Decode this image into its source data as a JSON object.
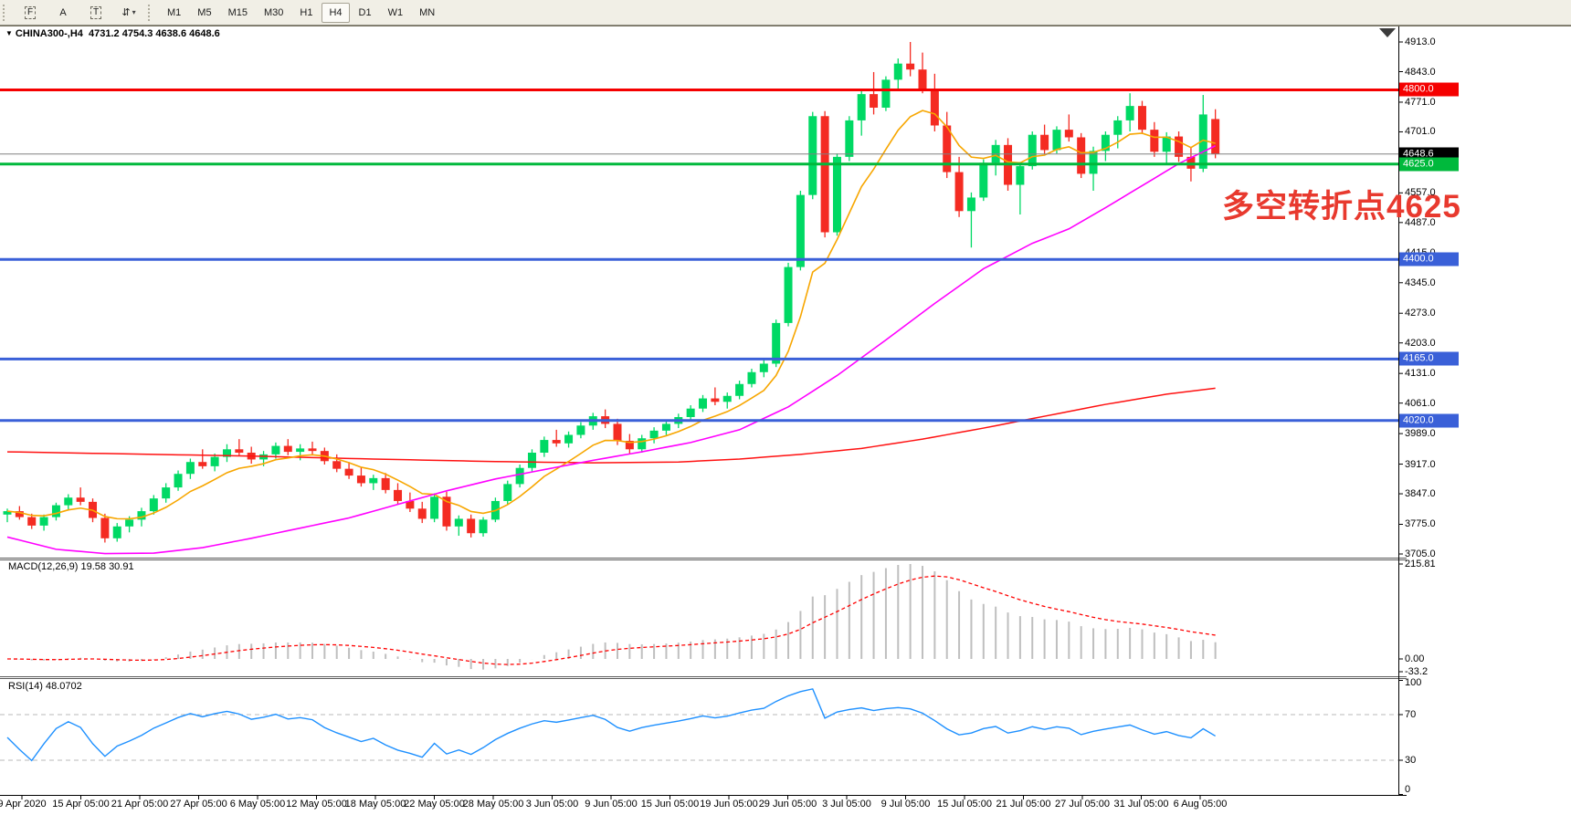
{
  "toolbar": {
    "icons": [
      {
        "name": "dotted-frame-f-icon",
        "glyph": "F",
        "boxed": true,
        "caret": false
      },
      {
        "name": "label-a-icon",
        "glyph": "A",
        "boxed": false,
        "caret": false
      },
      {
        "name": "text-tool-icon",
        "glyph": "T",
        "boxed": true,
        "caret": false
      },
      {
        "name": "arrows-dropdown-icon",
        "glyph": "⇵",
        "boxed": false,
        "caret": true
      }
    ],
    "timeframes": [
      {
        "label": "M1",
        "active": false
      },
      {
        "label": "M5",
        "active": false
      },
      {
        "label": "M15",
        "active": false
      },
      {
        "label": "M30",
        "active": false
      },
      {
        "label": "H1",
        "active": false
      },
      {
        "label": "H4",
        "active": true
      },
      {
        "label": "D1",
        "active": false
      },
      {
        "label": "W1",
        "active": false
      },
      {
        "label": "MN",
        "active": false
      }
    ]
  },
  "header": {
    "dropdown_icon": "▼",
    "symbol": "CHINA300-,H4",
    "ohlc": "4731.2 4754.3 4638.6 4648.6"
  },
  "annotation": {
    "text": "多空转折点4625",
    "color": "#e8392e"
  },
  "axis": {
    "price_ticks": [
      "4913.0",
      "4843.0",
      "4771.0",
      "4701.0",
      "4557.0",
      "4487.0",
      "4415.0",
      "4345.0",
      "4273.0",
      "4203.0",
      "4131.0",
      "4061.0",
      "3989.0",
      "3917.0",
      "3847.0",
      "3775.0",
      "3705.0"
    ],
    "price_boxes": [
      {
        "value": "4800.0",
        "price": 4800,
        "bg": "#f50000",
        "line": "#f50000",
        "line_width": 3
      },
      {
        "value": "4648.6",
        "price": 4648.6,
        "bg": "#000000",
        "line": "#808080",
        "line_width": 1
      },
      {
        "value": "4625.0",
        "price": 4625,
        "bg": "#00b93c",
        "line": "#00b93c",
        "line_width": 3
      },
      {
        "value": "4400.0",
        "price": 4400,
        "bg": "#3a60d8",
        "line": "#3a60d8",
        "line_width": 3
      },
      {
        "value": "4165.0",
        "price": 4165,
        "bg": "#3a60d8",
        "line": "#3a60d8",
        "line_width": 3
      },
      {
        "value": "4020.0",
        "price": 4020,
        "bg": "#3a60d8",
        "line": "#3a60d8",
        "line_width": 3
      }
    ],
    "macd_ticks": [
      {
        "label": "215.81",
        "value": 215.81
      },
      {
        "label": "0.00",
        "value": 0
      },
      {
        "label": "-33.2",
        "value": -33.2
      }
    ],
    "rsi_ticks": [
      {
        "label": "100",
        "value": 100
      },
      {
        "label": "70",
        "value": 70
      },
      {
        "label": "30",
        "value": 30
      },
      {
        "label": "0",
        "value": 0
      }
    ],
    "date_labels": [
      "9 Apr 2020",
      "15 Apr 05:00",
      "21 Apr 05:00",
      "27 Apr 05:00",
      "6 May 05:00",
      "12 May 05:00",
      "18 May 05:00",
      "22 May 05:00",
      "28 May 05:00",
      "3 Jun 05:00",
      "9 Jun 05:00",
      "15 Jun 05:00",
      "19 Jun 05:00",
      "29 Jun 05:00",
      "3 Jul 05:00",
      "9 Jul 05:00",
      "15 Jul 05:00",
      "21 Jul 05:00",
      "27 Jul 05:00",
      "31 Jul 05:00",
      "6 Aug 05:00"
    ]
  },
  "macd": {
    "label": "MACD(12,26,9)",
    "values": "19.58 30.91",
    "fast": 12,
    "slow": 26,
    "signal": 9
  },
  "rsi": {
    "label": "RSI(14)",
    "value": "48.0702",
    "period": 14,
    "levels": [
      70,
      30
    ]
  },
  "colors": {
    "up": "#00d964",
    "down": "#f42b22",
    "ma_fast": "#f7a600",
    "ma_mid": "#ff00ff",
    "ma_slow": "#ff1111",
    "macd_hist": "#bfbfbf",
    "macd_signal": "#ff0000",
    "rsi_line": "#1e90ff",
    "level_blue": "#3a60d8",
    "level_green": "#00b93c",
    "level_red": "#f50000",
    "current_price_line": "#808080",
    "separator": "#5a5a5a",
    "axis_line": "#000000"
  },
  "chart_data": {
    "type": "candlestick",
    "symbol": "CHINA300-",
    "timeframe": "H4",
    "ohlc": [
      [
        3798,
        3812,
        3780,
        3806
      ],
      [
        3806,
        3818,
        3786,
        3792
      ],
      [
        3792,
        3800,
        3764,
        3772
      ],
      [
        3772,
        3798,
        3760,
        3792
      ],
      [
        3792,
        3826,
        3784,
        3820
      ],
      [
        3820,
        3846,
        3810,
        3838
      ],
      [
        3838,
        3862,
        3820,
        3828
      ],
      [
        3828,
        3836,
        3780,
        3790
      ],
      [
        3790,
        3800,
        3732,
        3742
      ],
      [
        3742,
        3778,
        3734,
        3770
      ],
      [
        3770,
        3794,
        3756,
        3786
      ],
      [
        3786,
        3814,
        3770,
        3806
      ],
      [
        3806,
        3844,
        3798,
        3836
      ],
      [
        3836,
        3872,
        3826,
        3862
      ],
      [
        3862,
        3902,
        3854,
        3894
      ],
      [
        3894,
        3930,
        3882,
        3922
      ],
      [
        3922,
        3952,
        3906,
        3912
      ],
      [
        3912,
        3942,
        3900,
        3934
      ],
      [
        3934,
        3964,
        3922,
        3952
      ],
      [
        3952,
        3976,
        3936,
        3944
      ],
      [
        3944,
        3958,
        3918,
        3928
      ],
      [
        3928,
        3948,
        3912,
        3940
      ],
      [
        3940,
        3968,
        3930,
        3960
      ],
      [
        3960,
        3976,
        3938,
        3946
      ],
      [
        3946,
        3964,
        3926,
        3954
      ],
      [
        3954,
        3970,
        3940,
        3948
      ],
      [
        3948,
        3956,
        3916,
        3924
      ],
      [
        3924,
        3940,
        3898,
        3906
      ],
      [
        3906,
        3922,
        3882,
        3890
      ],
      [
        3890,
        3910,
        3864,
        3872
      ],
      [
        3872,
        3892,
        3856,
        3884
      ],
      [
        3884,
        3896,
        3848,
        3856
      ],
      [
        3856,
        3872,
        3822,
        3830
      ],
      [
        3830,
        3850,
        3804,
        3812
      ],
      [
        3812,
        3828,
        3778,
        3788
      ],
      [
        3788,
        3848,
        3780,
        3840
      ],
      [
        3840,
        3852,
        3760,
        3770
      ],
      [
        3770,
        3796,
        3748,
        3788
      ],
      [
        3788,
        3798,
        3744,
        3754
      ],
      [
        3754,
        3792,
        3746,
        3786
      ],
      [
        3786,
        3838,
        3780,
        3830
      ],
      [
        3830,
        3878,
        3822,
        3870
      ],
      [
        3870,
        3916,
        3862,
        3908
      ],
      [
        3908,
        3952,
        3900,
        3944
      ],
      [
        3944,
        3982,
        3934,
        3974
      ],
      [
        3974,
        3998,
        3958,
        3966
      ],
      [
        3966,
        3994,
        3956,
        3986
      ],
      [
        3986,
        4016,
        3978,
        4008
      ],
      [
        4008,
        4038,
        3998,
        4030
      ],
      [
        4030,
        4046,
        4002,
        4012
      ],
      [
        4012,
        4024,
        3962,
        3972
      ],
      [
        3972,
        3988,
        3942,
        3952
      ],
      [
        3952,
        3986,
        3944,
        3978
      ],
      [
        3978,
        4004,
        3966,
        3996
      ],
      [
        3996,
        4020,
        3986,
        4012
      ],
      [
        4012,
        4036,
        4002,
        4028
      ],
      [
        4028,
        4056,
        4018,
        4048
      ],
      [
        4048,
        4080,
        4040,
        4072
      ],
      [
        4072,
        4098,
        4056,
        4064
      ],
      [
        4064,
        4086,
        4048,
        4078
      ],
      [
        4078,
        4114,
        4070,
        4106
      ],
      [
        4106,
        4142,
        4098,
        4134
      ],
      [
        4134,
        4164,
        4122,
        4154
      ],
      [
        4154,
        4258,
        4146,
        4250
      ],
      [
        4250,
        4392,
        4242,
        4382
      ],
      [
        4382,
        4562,
        4374,
        4552
      ],
      [
        4552,
        4748,
        4542,
        4738
      ],
      [
        4738,
        4750,
        4452,
        4464
      ],
      [
        4464,
        4650,
        4456,
        4642
      ],
      [
        4642,
        4738,
        4632,
        4728
      ],
      [
        4728,
        4802,
        4692,
        4790
      ],
      [
        4790,
        4842,
        4742,
        4758
      ],
      [
        4758,
        4832,
        4750,
        4824
      ],
      [
        4824,
        4874,
        4802,
        4862
      ],
      [
        4862,
        4913,
        4832,
        4848
      ],
      [
        4848,
        4888,
        4792,
        4802
      ],
      [
        4802,
        4838,
        4702,
        4716
      ],
      [
        4716,
        4748,
        4592,
        4606
      ],
      [
        4606,
        4642,
        4500,
        4514
      ],
      [
        4514,
        4558,
        4428,
        4546
      ],
      [
        4546,
        4636,
        4538,
        4628
      ],
      [
        4628,
        4682,
        4598,
        4670
      ],
      [
        4670,
        4686,
        4562,
        4576
      ],
      [
        4576,
        4630,
        4506,
        4620
      ],
      [
        4620,
        4702,
        4612,
        4694
      ],
      [
        4694,
        4718,
        4648,
        4658
      ],
      [
        4658,
        4714,
        4650,
        4706
      ],
      [
        4706,
        4742,
        4678,
        4688
      ],
      [
        4688,
        4698,
        4592,
        4602
      ],
      [
        4602,
        4666,
        4562,
        4656
      ],
      [
        4656,
        4702,
        4632,
        4694
      ],
      [
        4694,
        4738,
        4662,
        4728
      ],
      [
        4728,
        4792,
        4702,
        4762
      ],
      [
        4762,
        4774,
        4696,
        4706
      ],
      [
        4706,
        4724,
        4642,
        4654
      ],
      [
        4654,
        4700,
        4624,
        4690
      ],
      [
        4690,
        4702,
        4630,
        4642
      ],
      [
        4642,
        4664,
        4584,
        4614
      ],
      [
        4614,
        4788,
        4606,
        4742
      ],
      [
        4731.2,
        4754.3,
        4638.6,
        4648.6
      ]
    ],
    "ma_fast_period": 8,
    "ma_mid_points": [
      [
        0,
        3745
      ],
      [
        4,
        3716
      ],
      [
        8,
        3706
      ],
      [
        12,
        3707
      ],
      [
        16,
        3720
      ],
      [
        20,
        3742
      ],
      [
        24,
        3766
      ],
      [
        28,
        3790
      ],
      [
        32,
        3822
      ],
      [
        36,
        3854
      ],
      [
        40,
        3882
      ],
      [
        44,
        3904
      ],
      [
        48,
        3926
      ],
      [
        52,
        3946
      ],
      [
        56,
        3968
      ],
      [
        60,
        3998
      ],
      [
        64,
        4052
      ],
      [
        68,
        4126
      ],
      [
        72,
        4210
      ],
      [
        76,
        4296
      ],
      [
        80,
        4378
      ],
      [
        84,
        4438
      ],
      [
        87,
        4472
      ],
      [
        90,
        4522
      ],
      [
        93,
        4574
      ],
      [
        96,
        4626
      ],
      [
        99,
        4668
      ]
    ],
    "ma_slow_points": [
      [
        0,
        3946
      ],
      [
        10,
        3941
      ],
      [
        20,
        3936
      ],
      [
        30,
        3929
      ],
      [
        40,
        3923
      ],
      [
        48,
        3920
      ],
      [
        55,
        3922
      ],
      [
        60,
        3929
      ],
      [
        65,
        3940
      ],
      [
        70,
        3954
      ],
      [
        75,
        3976
      ],
      [
        80,
        4002
      ],
      [
        85,
        4030
      ],
      [
        90,
        4058
      ],
      [
        95,
        4082
      ],
      [
        99,
        4096
      ]
    ]
  }
}
